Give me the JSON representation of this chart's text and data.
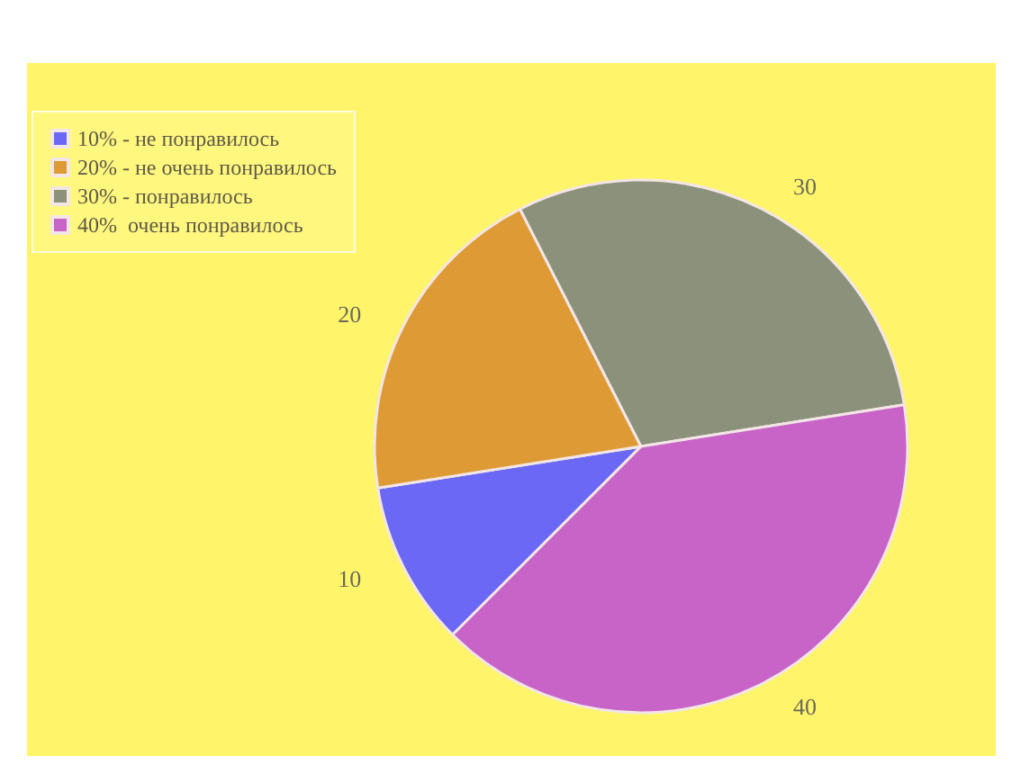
{
  "chart_data": {
    "type": "pie",
    "categories": [
      "10% - не понравилось",
      "20% - не очень понравилось",
      "30% - понравилось",
      "40%  очень понравилось"
    ],
    "values": [
      10,
      20,
      30,
      40
    ],
    "colors": [
      "#6b68f5",
      "#de9a35",
      "#8b917a",
      "#c864c8"
    ],
    "data_labels": true,
    "legend": "top left"
  }
}
